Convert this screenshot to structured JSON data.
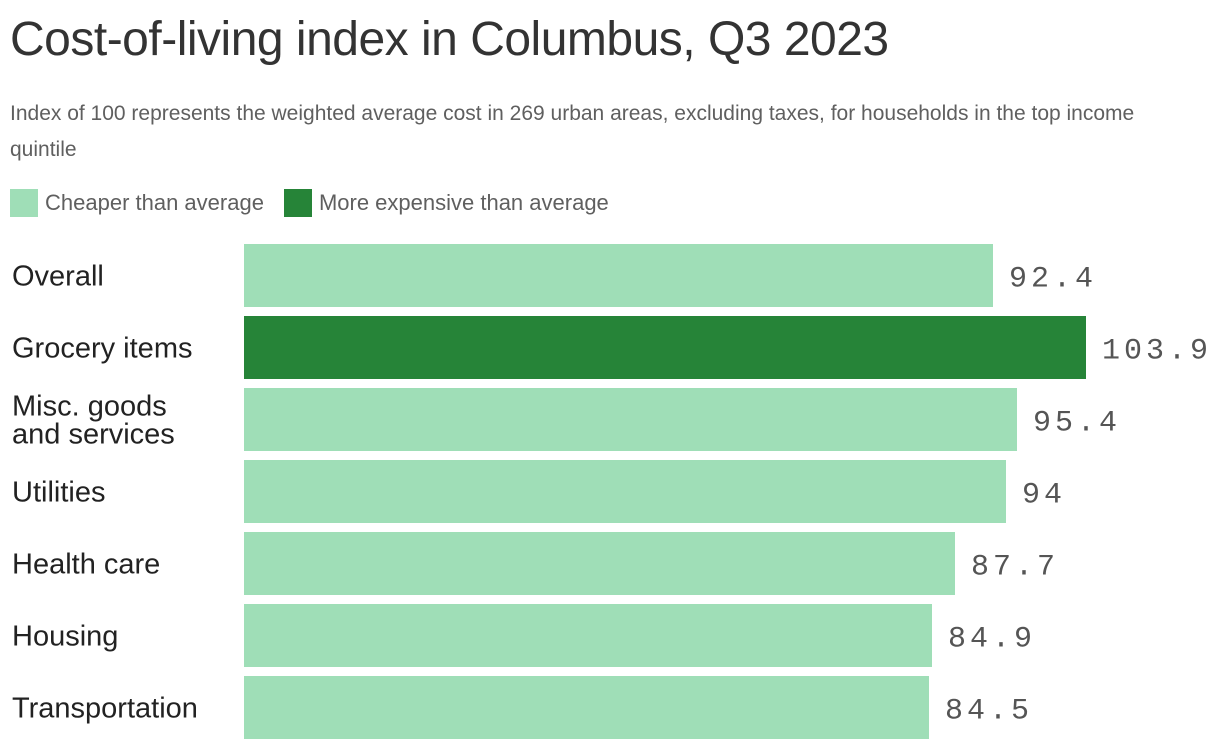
{
  "chart_data": {
    "type": "bar",
    "orientation": "horizontal",
    "title": "Cost-of-living index in Columbus, Q3 2023",
    "subtitle": "Index of 100 represents the weighted average cost in 269 urban areas, excluding taxes, for households in the top income quintile",
    "categories": [
      [
        "Overall"
      ],
      [
        "Grocery items"
      ],
      [
        "Misc. goods",
        "and services"
      ],
      [
        "Utilities"
      ],
      [
        "Health care"
      ],
      [
        "Housing"
      ],
      [
        "Transportation"
      ]
    ],
    "values": [
      92.4,
      103.9,
      95.4,
      94,
      87.7,
      84.9,
      84.5
    ],
    "value_labels": [
      "92.4",
      "103.9",
      "95.4",
      "94",
      "87.7",
      "84.9",
      "84.5"
    ],
    "xlim": [
      0,
      103.9
    ],
    "grid": false,
    "legend": {
      "placement": "top-left",
      "entries": [
        {
          "label": "Cheaper than average",
          "color": "#9fdeb7"
        },
        {
          "label": "More expensive than average",
          "color": "#268438"
        }
      ]
    },
    "colors": {
      "cheaper": "#9fdeb7",
      "expensive": "#268438"
    },
    "threshold": 100
  }
}
